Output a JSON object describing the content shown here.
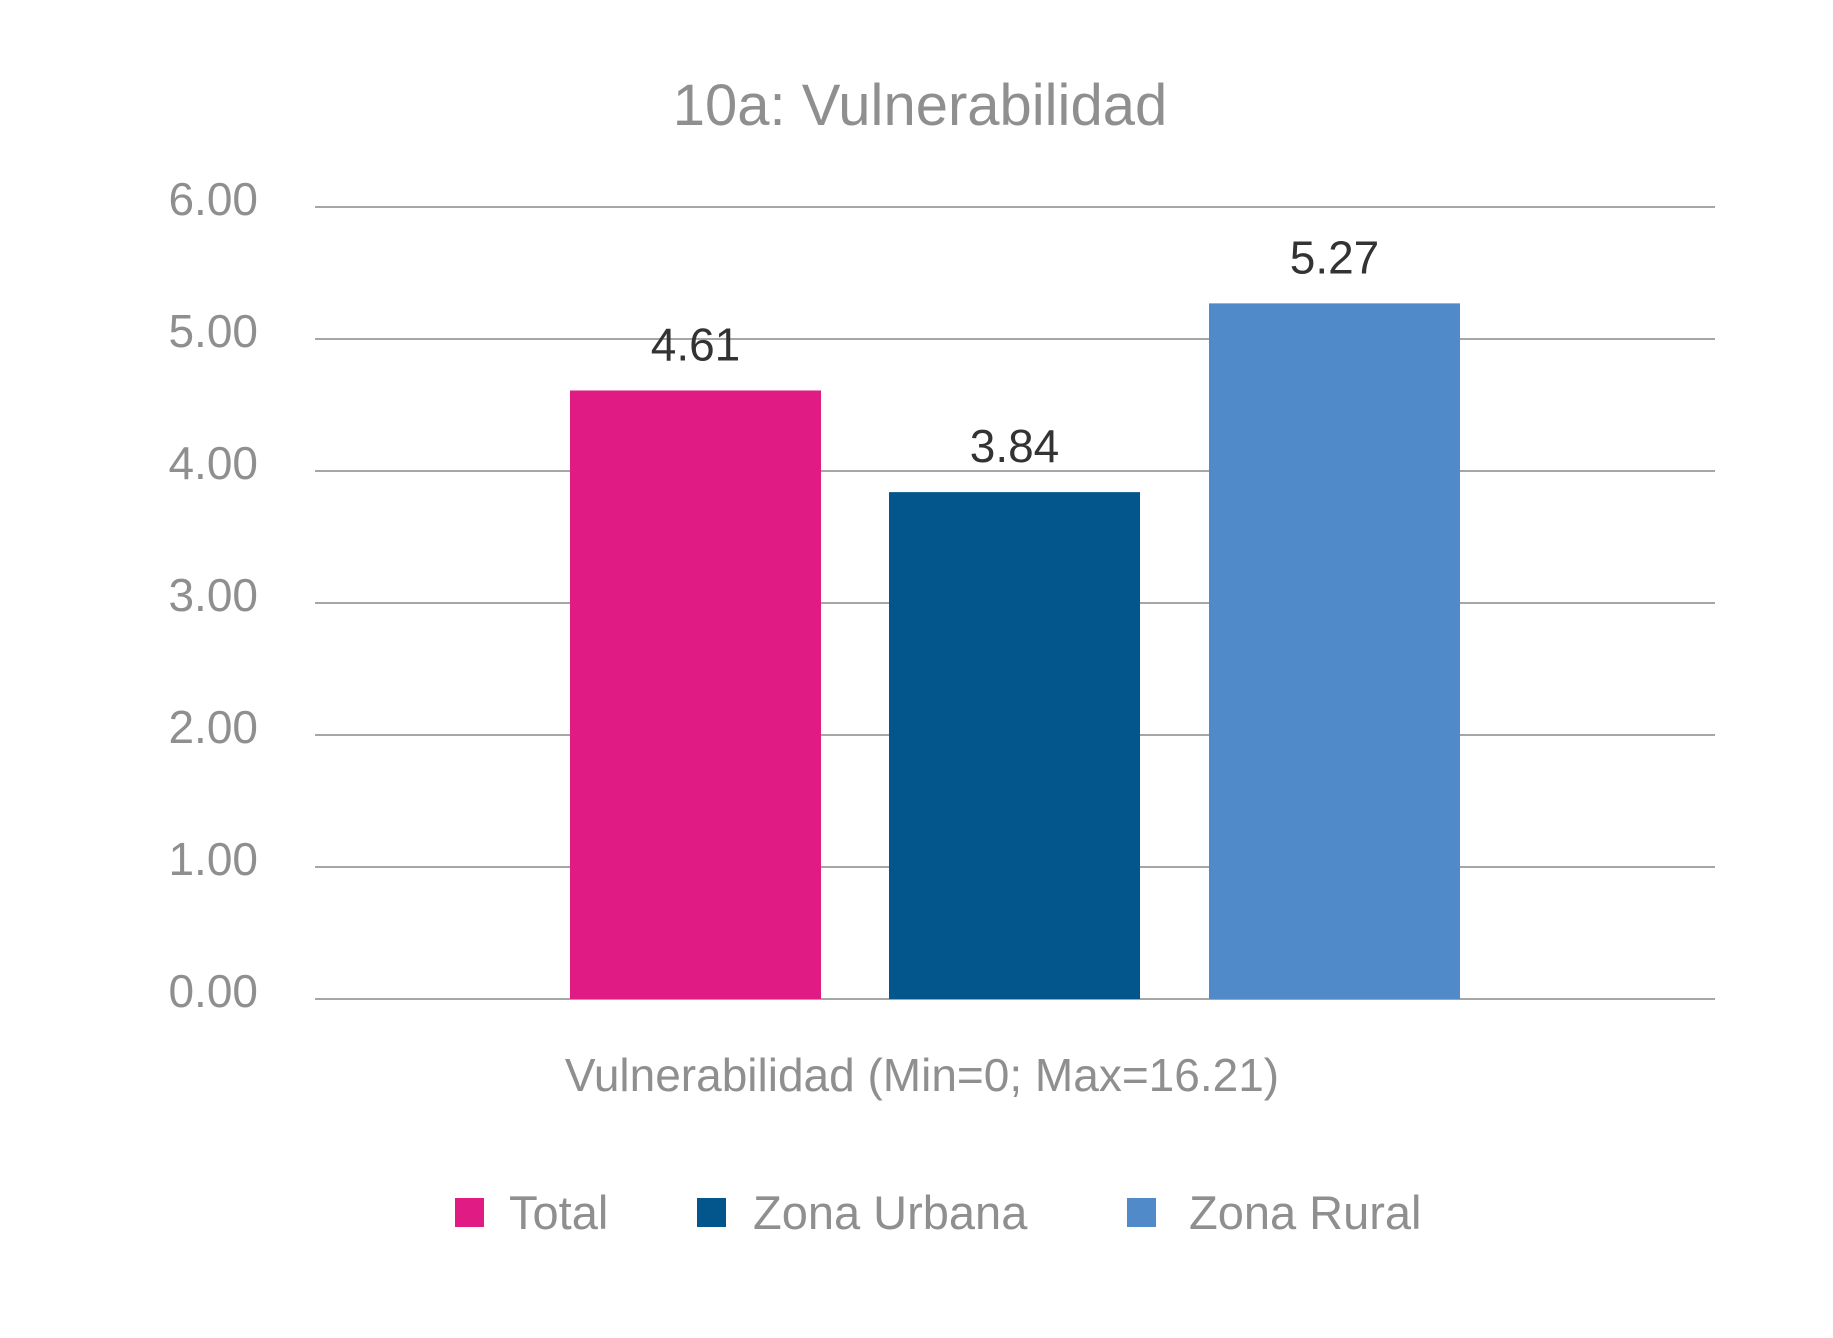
{
  "chart_data": {
    "type": "bar",
    "title": "10a: Vulnerabilidad",
    "xlabel": "Vulnerabilidad (Min=0; Max=16.21)",
    "ylabel": "",
    "ylim": [
      0,
      6
    ],
    "yticks": [
      "0.00",
      "1.00",
      "2.00",
      "3.00",
      "4.00",
      "5.00",
      "6.00"
    ],
    "grid": true,
    "legend_position": "bottom",
    "categories": [
      "Vulnerabilidad (Min=0; Max=16.21)"
    ],
    "series": [
      {
        "name": "Total",
        "values": [
          4.61
        ],
        "label": "4.61",
        "color": "#E01B84"
      },
      {
        "name": "Zona Urbana",
        "values": [
          3.84
        ],
        "label": "3.84",
        "color": "#02568C"
      },
      {
        "name": "Zona Rural",
        "values": [
          5.27
        ],
        "label": "5.27",
        "color": "#518AC9"
      }
    ]
  }
}
